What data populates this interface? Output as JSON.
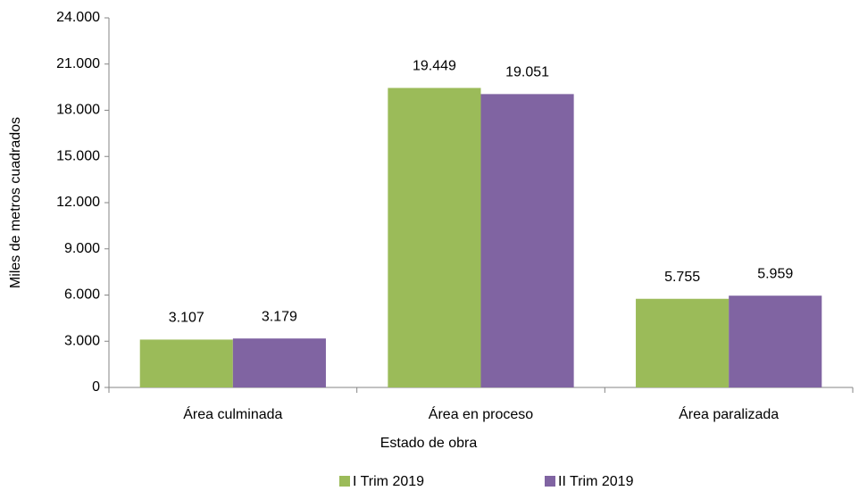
{
  "chart_data": {
    "type": "bar",
    "categories": [
      "Área culminada",
      "Área en proceso",
      "Área paralizada"
    ],
    "series": [
      {
        "name": "I Trim 2019",
        "color": "#9bbb59",
        "values": [
          3107,
          19449,
          5755
        ],
        "value_labels": [
          "3.107",
          "19.449",
          "5.755"
        ]
      },
      {
        "name": "II Trim 2019",
        "color": "#8064a2",
        "values": [
          3179,
          19051,
          5959
        ],
        "value_labels": [
          "3.179",
          "19.051",
          "5.959"
        ]
      }
    ],
    "xlabel": "Estado de obra",
    "ylabel": "Miles de metros cuadrados",
    "ylim": [
      0,
      24000
    ],
    "yticks": [
      0,
      {
        "value": 3000,
        "label": "3.000"
      },
      {
        "value": 6000,
        "label": "6.000"
      },
      {
        "value": 9000,
        "label": "9.000"
      },
      {
        "value": 12000,
        "label": "12.000"
      },
      {
        "value": 15000,
        "label": "15.000"
      },
      {
        "value": 18000,
        "label": "18.000"
      },
      {
        "value": 21000,
        "label": "21.000"
      },
      {
        "value": 24000,
        "label": "24.000"
      }
    ],
    "grid": false,
    "legend": "bottom"
  }
}
